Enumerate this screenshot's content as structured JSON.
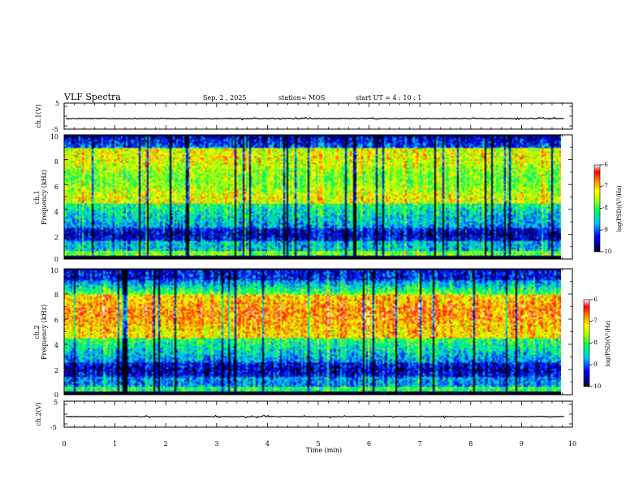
{
  "header": {
    "title": "VLF Spectra",
    "date": "Sep. 2 , 2025",
    "station": "station= MOS",
    "start": "start UT =  4 : 10 : 1"
  },
  "chart_data": [
    {
      "type": "line",
      "ylabel": "ch.1(V)",
      "ylim": [
        -5,
        5
      ],
      "y_tick_labels": [
        "5",
        "-5"
      ],
      "xlim": [
        0,
        10
      ],
      "data_end_min": 9.85,
      "baseline": 0
    },
    {
      "type": "heatmap",
      "ylabel_line1": "ch.1",
      "ylabel_line2": "Frequency (kHz)",
      "ylim": [
        0,
        10
      ],
      "y_tick_labels": [
        "0",
        "2",
        "4",
        "6",
        "8",
        "10"
      ],
      "xlim": [
        0,
        10
      ],
      "data_end_min": 9.85,
      "colorbar": {
        "label": "log(PSD)(V²/Hz)",
        "range": [
          -10,
          -6
        ],
        "tick_labels": [
          "-6",
          "-7",
          "-8",
          "-9",
          "-10"
        ]
      }
    },
    {
      "type": "heatmap",
      "ylabel_line1": "ch.2",
      "ylabel_line2": "Frequency (kHz)",
      "ylim": [
        0,
        10
      ],
      "y_tick_labels": [
        "0",
        "2",
        "4",
        "6",
        "8",
        "10"
      ],
      "xlim": [
        0,
        10
      ],
      "data_end_min": 9.85,
      "colorbar": {
        "label": "log(PSD)(V²/Hz)",
        "range": [
          -10,
          -6
        ],
        "tick_labels": [
          "-6",
          "-7",
          "-8",
          "-9",
          "-10"
        ]
      }
    },
    {
      "type": "line",
      "ylabel": "ch.2(V)",
      "ylim": [
        -5,
        5
      ],
      "y_tick_labels": [
        "5",
        "-5"
      ],
      "xlim": [
        0,
        10
      ],
      "data_end_min": 9.85,
      "baseline": 0,
      "xlabel": "Time (min)",
      "x_tick_labels": [
        "0",
        "1",
        "2",
        "3",
        "4",
        "5",
        "6",
        "7",
        "8",
        "9",
        "10"
      ]
    }
  ]
}
